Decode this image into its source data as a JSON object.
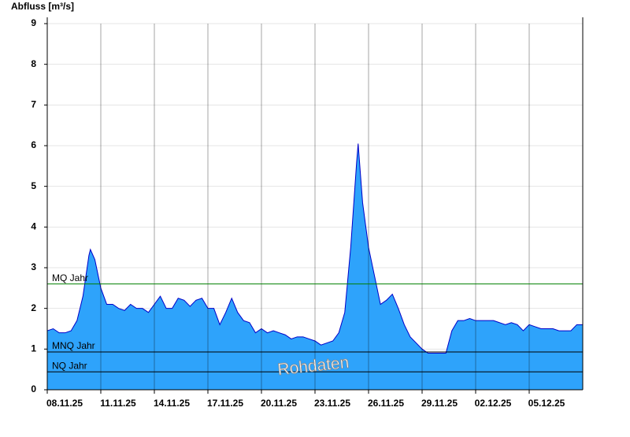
{
  "chart_data": {
    "type": "area",
    "y_label": "Abfluss [m³/s]",
    "annotation": "Rohdaten",
    "color": "#2ea3fb",
    "line_color": "#0000c8",
    "ylim": [
      0,
      9
    ],
    "yticks": [
      0,
      1,
      2,
      3,
      4,
      5,
      6,
      7,
      8,
      9
    ],
    "grid": true,
    "xlim": [
      "2025-11-08 00:00",
      "2025-12-08 00:00"
    ],
    "xticks": [
      {
        "value": "2025-11-08 00:00",
        "label": "08.11.25"
      },
      {
        "value": "2025-11-11 00:00",
        "label": "11.11.25"
      },
      {
        "value": "2025-11-14 00:00",
        "label": "14.11.25"
      },
      {
        "value": "2025-11-17 00:00",
        "label": "17.11.25"
      },
      {
        "value": "2025-11-20 00:00",
        "label": "20.11.25"
      },
      {
        "value": "2025-11-23 00:00",
        "label": "23.11.25"
      },
      {
        "value": "2025-11-26 00:00",
        "label": "26.11.25"
      },
      {
        "value": "2025-11-29 00:00",
        "label": "29.11.25"
      },
      {
        "value": "2025-12-02 00:00",
        "label": "02.12.25"
      },
      {
        "value": "2025-12-05 00:00",
        "label": "05.12.25"
      }
    ],
    "reference_lines": [
      {
        "label": "MQ Jahr",
        "value": 2.6,
        "color": "#008000"
      },
      {
        "label": "MNQ Jahr",
        "value": 0.93,
        "color": "#000000"
      },
      {
        "label": "NQ Jahr",
        "value": 0.44,
        "color": "#000000"
      }
    ],
    "x": [
      "2025-11-08 00:00",
      "2025-11-08 08:00",
      "2025-11-08 16:00",
      "2025-11-09 00:00",
      "2025-11-09 08:00",
      "2025-11-09 16:00",
      "2025-11-10 00:00",
      "2025-11-10 08:00",
      "2025-11-10 10:00",
      "2025-11-10 16:00",
      "2025-11-11 00:00",
      "2025-11-11 08:00",
      "2025-11-11 16:00",
      "2025-11-12 00:00",
      "2025-11-12 08:00",
      "2025-11-12 16:00",
      "2025-11-13 00:00",
      "2025-11-13 08:00",
      "2025-11-13 16:00",
      "2025-11-14 00:00",
      "2025-11-14 08:00",
      "2025-11-14 16:00",
      "2025-11-15 00:00",
      "2025-11-15 08:00",
      "2025-11-15 16:00",
      "2025-11-16 00:00",
      "2025-11-16 08:00",
      "2025-11-16 16:00",
      "2025-11-17 00:00",
      "2025-11-17 08:00",
      "2025-11-17 16:00",
      "2025-11-18 00:00",
      "2025-11-18 08:00",
      "2025-11-18 16:00",
      "2025-11-19 00:00",
      "2025-11-19 08:00",
      "2025-11-19 16:00",
      "2025-11-20 00:00",
      "2025-11-20 08:00",
      "2025-11-20 16:00",
      "2025-11-21 00:00",
      "2025-11-21 08:00",
      "2025-11-21 16:00",
      "2025-11-22 00:00",
      "2025-11-22 08:00",
      "2025-11-22 16:00",
      "2025-11-23 00:00",
      "2025-11-23 08:00",
      "2025-11-23 16:00",
      "2025-11-24 00:00",
      "2025-11-24 08:00",
      "2025-11-24 16:00",
      "2025-11-25 00:00",
      "2025-11-25 08:00",
      "2025-11-25 10:00",
      "2025-11-25 16:00",
      "2025-11-26 00:00",
      "2025-11-26 08:00",
      "2025-11-26 16:00",
      "2025-11-27 00:00",
      "2025-11-27 08:00",
      "2025-11-27 16:00",
      "2025-11-28 00:00",
      "2025-11-28 08:00",
      "2025-11-28 16:00",
      "2025-11-29 00:00",
      "2025-11-29 08:00",
      "2025-11-29 16:00",
      "2025-11-30 00:00",
      "2025-11-30 08:00",
      "2025-11-30 16:00",
      "2025-12-01 00:00",
      "2025-12-01 08:00",
      "2025-12-01 16:00",
      "2025-12-02 00:00",
      "2025-12-02 08:00",
      "2025-12-02 16:00",
      "2025-12-03 00:00",
      "2025-12-03 08:00",
      "2025-12-03 16:00",
      "2025-12-04 00:00",
      "2025-12-04 08:00",
      "2025-12-04 16:00",
      "2025-12-05 00:00",
      "2025-12-05 08:00",
      "2025-12-05 16:00",
      "2025-12-06 00:00",
      "2025-12-06 08:00",
      "2025-12-06 16:00",
      "2025-12-07 00:00",
      "2025-12-07 08:00",
      "2025-12-07 16:00",
      "2025-12-08 00:00"
    ],
    "values": [
      1.45,
      1.5,
      1.4,
      1.4,
      1.45,
      1.7,
      2.3,
      3.3,
      3.45,
      3.2,
      2.5,
      2.1,
      2.1,
      2.0,
      1.95,
      2.1,
      2.0,
      2.0,
      1.9,
      2.1,
      2.3,
      2.0,
      2.0,
      2.25,
      2.2,
      2.05,
      2.2,
      2.25,
      2.0,
      2.0,
      1.6,
      1.9,
      2.25,
      1.9,
      1.7,
      1.65,
      1.4,
      1.5,
      1.4,
      1.45,
      1.4,
      1.35,
      1.25,
      1.3,
      1.3,
      1.25,
      1.2,
      1.1,
      1.15,
      1.2,
      1.4,
      1.9,
      3.5,
      5.6,
      6.05,
      4.6,
      3.5,
      2.8,
      2.1,
      2.2,
      2.35,
      2.0,
      1.6,
      1.3,
      1.15,
      1.0,
      0.9,
      0.9,
      0.9,
      0.9,
      1.45,
      1.7,
      1.7,
      1.75,
      1.7,
      1.7,
      1.7,
      1.7,
      1.65,
      1.6,
      1.65,
      1.6,
      1.45,
      1.6,
      1.55,
      1.5,
      1.5,
      1.5,
      1.45,
      1.45,
      1.45,
      1.6,
      1.6
    ]
  }
}
